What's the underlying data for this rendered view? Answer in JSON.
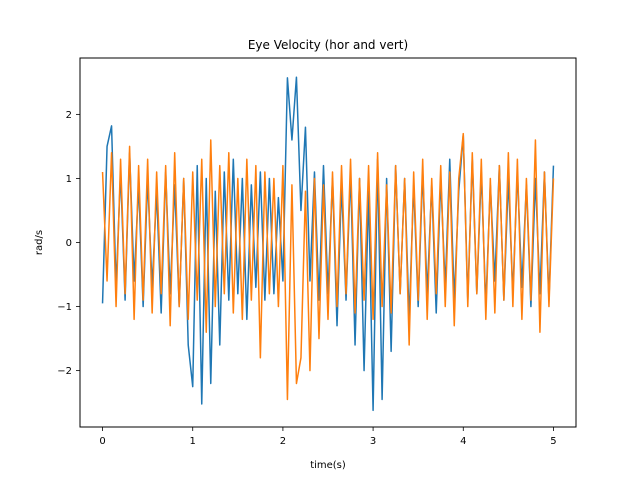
{
  "chart_data": {
    "type": "line",
    "title": "Eye Velocity (hor and vert)",
    "xlabel": "time(s)",
    "ylabel": "rad/s",
    "xlim": [
      -0.25,
      5.25
    ],
    "ylim": [
      -2.88,
      2.88
    ],
    "xticks": [
      {
        "value": 0,
        "label": "0"
      },
      {
        "value": 1,
        "label": "1"
      },
      {
        "value": 2,
        "label": "2"
      },
      {
        "value": 3,
        "label": "3"
      },
      {
        "value": 4,
        "label": "4"
      },
      {
        "value": 5,
        "label": "5"
      }
    ],
    "yticks": [
      {
        "value": -2,
        "label": "−2"
      },
      {
        "value": -1,
        "label": "−1"
      },
      {
        "value": 0,
        "label": "0"
      },
      {
        "value": 1,
        "label": "1"
      },
      {
        "value": 2,
        "label": "2"
      }
    ],
    "grid": false,
    "legend": "none",
    "series": [
      {
        "color": "#1f77b4",
        "x": [
          0,
          0.05,
          0.1,
          0.15,
          0.2,
          0.25,
          0.3,
          0.35,
          0.4,
          0.45,
          0.5,
          0.55,
          0.6,
          0.65,
          0.7,
          0.75,
          0.8,
          0.85,
          0.9,
          0.95,
          1,
          1.05,
          1.1,
          1.15,
          1.2,
          1.25,
          1.3,
          1.35,
          1.4,
          1.45,
          1.5,
          1.55,
          1.6,
          1.65,
          1.7,
          1.75,
          1.8,
          1.85,
          1.9,
          1.95,
          2,
          2.05,
          2.1,
          2.15,
          2.2,
          2.25,
          2.3,
          2.35,
          2.4,
          2.45,
          2.5,
          2.55,
          2.6,
          2.65,
          2.7,
          2.75,
          2.8,
          2.85,
          2.9,
          2.95,
          3,
          3.05,
          3.1,
          3.15,
          3.2,
          3.25,
          3.3,
          3.35,
          3.4,
          3.45,
          3.5,
          3.55,
          3.6,
          3.65,
          3.7,
          3.75,
          3.8,
          3.85,
          3.9,
          3.95,
          4,
          4.05,
          4.1,
          4.15,
          4.2,
          4.25,
          4.3,
          4.35,
          4.4,
          4.45,
          4.5,
          4.55,
          4.6,
          4.65,
          4.7,
          4.75,
          4.8,
          4.85,
          4.9,
          4.95,
          5
        ],
        "y": [
          -0.95,
          1.5,
          1.82,
          -0.7,
          1.1,
          -0.9,
          1.4,
          -0.6,
          0.9,
          -1.0,
          1.0,
          -0.7,
          0.8,
          -1.1,
          1.1,
          -0.8,
          0.9,
          -1.0,
          1.0,
          -1.6,
          -2.25,
          1.2,
          -2.52,
          1.0,
          -2.2,
          0.8,
          -1.6,
          1.1,
          -0.9,
          1.3,
          -0.8,
          1.0,
          -1.2,
          0.9,
          -0.7,
          1.1,
          -0.9,
          1.0,
          -0.8,
          0.7,
          -0.6,
          2.57,
          1.6,
          2.58,
          0.5,
          1.8,
          -0.6,
          1.1,
          -0.9,
          1.2,
          -0.8,
          1.0,
          -1.3,
          0.9,
          -0.9,
          1.1,
          -1.6,
          1.0,
          -2.0,
          0.8,
          -2.62,
          1.3,
          -2.45,
          1.0,
          -1.7,
          1.2,
          -0.8,
          1.0,
          -1.2,
          0.9,
          -1.0,
          1.1,
          -0.8,
          0.9,
          -1.1,
          1.0,
          -0.7,
          1.3,
          -0.9,
          0.8,
          1.68,
          -0.9,
          1.3,
          -0.8,
          1.1,
          -1.0,
          0.9,
          -0.6,
          1.2,
          -0.9,
          1.0,
          -0.8,
          1.1,
          -0.7,
          0.9,
          -1.0,
          1.0,
          -0.8,
          1.1,
          -0.9,
          1.2
        ]
      },
      {
        "color": "#ff7f0e",
        "x": [
          0,
          0.05,
          0.1,
          0.15,
          0.2,
          0.25,
          0.3,
          0.35,
          0.4,
          0.45,
          0.5,
          0.55,
          0.6,
          0.65,
          0.7,
          0.75,
          0.8,
          0.85,
          0.9,
          0.95,
          1,
          1.05,
          1.1,
          1.15,
          1.2,
          1.25,
          1.3,
          1.35,
          1.4,
          1.45,
          1.5,
          1.55,
          1.6,
          1.65,
          1.7,
          1.75,
          1.8,
          1.85,
          1.9,
          1.95,
          2,
          2.05,
          2.1,
          2.15,
          2.2,
          2.25,
          2.3,
          2.35,
          2.4,
          2.45,
          2.5,
          2.55,
          2.6,
          2.65,
          2.7,
          2.75,
          2.8,
          2.85,
          2.9,
          2.95,
          3,
          3.05,
          3.1,
          3.15,
          3.2,
          3.25,
          3.3,
          3.35,
          3.4,
          3.45,
          3.5,
          3.55,
          3.6,
          3.65,
          3.7,
          3.75,
          3.8,
          3.85,
          3.9,
          3.95,
          4,
          4.05,
          4.1,
          4.15,
          4.2,
          4.25,
          4.3,
          4.35,
          4.4,
          4.45,
          4.5,
          4.55,
          4.6,
          4.65,
          4.7,
          4.75,
          4.8,
          4.85,
          4.9,
          4.95,
          5
        ],
        "y": [
          1.1,
          -0.6,
          1.4,
          -1.0,
          1.3,
          -0.8,
          1.5,
          -1.2,
          1.2,
          -0.9,
          1.3,
          -1.1,
          1.1,
          -0.8,
          1.2,
          -1.3,
          1.4,
          -1.0,
          1.0,
          -1.2,
          1.1,
          -0.9,
          1.3,
          -1.4,
          1.6,
          -1.0,
          1.2,
          -0.8,
          1.4,
          -1.1,
          1.0,
          -1.2,
          1.3,
          -0.9,
          1.2,
          -1.8,
          1.1,
          -0.8,
          1.0,
          -1.0,
          1.2,
          -2.45,
          0.9,
          -2.2,
          -1.8,
          0.8,
          -2.0,
          1.0,
          -1.5,
          0.9,
          -1.2,
          1.1,
          -1.0,
          1.2,
          -0.8,
          1.3,
          -1.1,
          1.0,
          -0.9,
          1.2,
          -1.2,
          1.4,
          -1.0,
          0.9,
          -1.1,
          1.2,
          -0.8,
          1.0,
          -1.6,
          1.1,
          -0.9,
          1.3,
          -1.2,
          1.0,
          -0.8,
          1.2,
          -1.0,
          1.1,
          -1.3,
          1.0,
          1.7,
          -1.0,
          1.4,
          -0.8,
          1.3,
          -1.2,
          1.0,
          -1.1,
          1.2,
          -0.9,
          1.4,
          -1.0,
          1.3,
          -1.2,
          1.0,
          -0.9,
          1.6,
          -1.4,
          1.1,
          -1.0,
          1.0
        ]
      }
    ]
  }
}
